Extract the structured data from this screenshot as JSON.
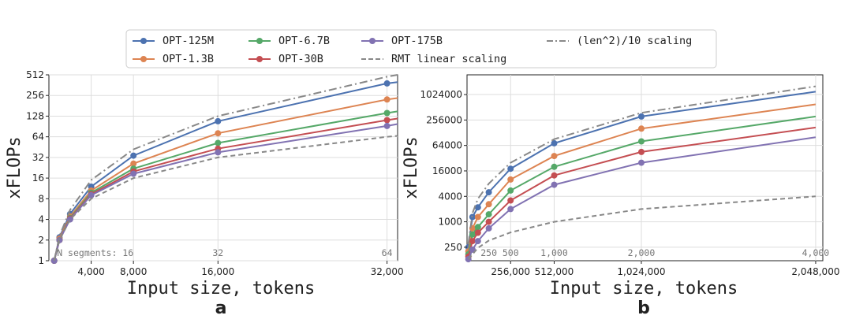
{
  "legend": {
    "entries": [
      {
        "label": "OPT-125M",
        "color": "#4c72b0",
        "style": "line-marker"
      },
      {
        "label": "OPT-6.7B",
        "color": "#55a868",
        "style": "line-marker"
      },
      {
        "label": "OPT-175B",
        "color": "#8172b2",
        "style": "line-marker"
      },
      {
        "label": "(len^2)/10 scaling",
        "color": "#888888",
        "style": "dashdot"
      },
      {
        "label": "OPT-1.3B",
        "color": "#dd8452",
        "style": "line-marker"
      },
      {
        "label": "OPT-30B",
        "color": "#c44e52",
        "style": "line-marker"
      },
      {
        "label": "RMT linear scaling",
        "color": "#888888",
        "style": "dashed"
      }
    ]
  },
  "chart_data": [
    {
      "panel": "a",
      "type": "line",
      "xlabel": "Input size, tokens",
      "ylabel": "xFLOPs",
      "yscale": "log2",
      "ylim": [
        1,
        512
      ],
      "xlim": [
        0,
        33000
      ],
      "y_ticks": [
        "1",
        "2",
        "4",
        "8",
        "16",
        "32",
        "64",
        "128",
        "256",
        "512"
      ],
      "x_ticks": [
        {
          "value": 4000,
          "label": "4,000"
        },
        {
          "value": 8000,
          "label": "8,000"
        },
        {
          "value": 16000,
          "label": "16,000"
        },
        {
          "value": 32000,
          "label": "32,000"
        }
      ],
      "segment_labels": [
        {
          "value": 8000,
          "label": "N segments: 16"
        },
        {
          "value": 16000,
          "label": "32"
        },
        {
          "value": 32000,
          "label": "64"
        }
      ],
      "grid": true,
      "series": [
        {
          "name": "OPT-125M",
          "color": "#4c72b0",
          "marker": true,
          "x": [
            500,
            1000,
            2000,
            4000,
            8000,
            16000,
            32000,
            33000
          ],
          "y": [
            1,
            2.2,
            4.8,
            12,
            34,
            108,
            384,
            400
          ]
        },
        {
          "name": "OPT-1.3B",
          "color": "#dd8452",
          "marker": true,
          "x": [
            500,
            1000,
            2000,
            4000,
            8000,
            16000,
            32000,
            33000
          ],
          "y": [
            1,
            2.1,
            4.4,
            10.5,
            26,
            72,
            224,
            235
          ]
        },
        {
          "name": "OPT-6.7B",
          "color": "#55a868",
          "marker": true,
          "x": [
            500,
            1000,
            2000,
            4000,
            8000,
            16000,
            32000,
            33000
          ],
          "y": [
            1,
            2.0,
            4.2,
            9.8,
            22,
            52,
            142,
            150
          ]
        },
        {
          "name": "OPT-30B",
          "color": "#c44e52",
          "marker": true,
          "x": [
            500,
            1000,
            2000,
            4000,
            8000,
            16000,
            32000,
            33000
          ],
          "y": [
            1,
            2.0,
            4.1,
            9.3,
            20,
            43,
            112,
            118
          ]
        },
        {
          "name": "OPT-175B",
          "color": "#8172b2",
          "marker": true,
          "x": [
            500,
            1000,
            2000,
            4000,
            8000,
            16000,
            32000,
            33000
          ],
          "y": [
            1,
            2.0,
            4.0,
            9.0,
            18.5,
            38,
            92,
            98
          ]
        },
        {
          "name": "(len^2)/10 scaling",
          "color": "#888888",
          "dash": "10,4,2,4",
          "marker": false,
          "x": [
            500,
            1000,
            2000,
            4000,
            8000,
            16000,
            32000,
            33000
          ],
          "y": [
            1,
            2.3,
            5.5,
            15,
            42,
            128,
            480,
            512
          ]
        },
        {
          "name": "RMT linear scaling",
          "color": "#888888",
          "dash": "6,4",
          "marker": false,
          "x": [
            500,
            1000,
            2000,
            4000,
            8000,
            16000,
            32000,
            33000
          ],
          "y": [
            1,
            2.0,
            4.0,
            8.0,
            16,
            32,
            64,
            66
          ]
        }
      ]
    },
    {
      "panel": "b",
      "type": "line",
      "xlabel": "Input size, tokens",
      "ylabel": "xFLOPs",
      "yscale": "log",
      "ylim": [
        120,
        3000000
      ],
      "xlim": [
        0,
        2090000
      ],
      "y_ticks": [
        {
          "value": 250,
          "label": "250"
        },
        {
          "value": 1000,
          "label": "1000"
        },
        {
          "value": 4000,
          "label": "4000"
        },
        {
          "value": 16000,
          "label": "16000"
        },
        {
          "value": 64000,
          "label": "64000"
        },
        {
          "value": 256000,
          "label": "256000"
        },
        {
          "value": 1024000,
          "label": "1024000"
        }
      ],
      "x_ticks": [
        {
          "value": 256000,
          "label": "256,000"
        },
        {
          "value": 512000,
          "label": "512,000"
        },
        {
          "value": 1024000,
          "label": "1,024,000"
        },
        {
          "value": 2048000,
          "label": "2,048,000"
        }
      ],
      "segment_labels": [
        {
          "value": 128000,
          "label": "250"
        },
        {
          "value": 256000,
          "label": "500"
        },
        {
          "value": 512000,
          "label": "1,000"
        },
        {
          "value": 1024000,
          "label": "2,000"
        },
        {
          "value": 2048000,
          "label": "4,000"
        }
      ],
      "grid": true,
      "series": [
        {
          "name": "OPT-125M",
          "color": "#4c72b0",
          "marker": true,
          "x": [
            8000,
            32000,
            64000,
            128000,
            256000,
            512000,
            1024000,
            2048000
          ],
          "y": [
            250,
            1300,
            2200,
            5000,
            18000,
            72000,
            310000,
            1200000
          ]
        },
        {
          "name": "OPT-1.3B",
          "color": "#dd8452",
          "marker": true,
          "x": [
            8000,
            32000,
            64000,
            128000,
            256000,
            512000,
            1024000,
            2048000
          ],
          "y": [
            200,
            700,
            1300,
            2600,
            10000,
            36000,
            160000,
            600000
          ]
        },
        {
          "name": "OPT-6.7B",
          "color": "#55a868",
          "marker": true,
          "x": [
            8000,
            32000,
            64000,
            128000,
            256000,
            512000,
            1024000,
            2048000
          ],
          "y": [
            170,
            500,
            750,
            1500,
            5500,
            20000,
            80000,
            310000
          ]
        },
        {
          "name": "OPT-30B",
          "color": "#c44e52",
          "marker": true,
          "x": [
            8000,
            32000,
            64000,
            128000,
            256000,
            512000,
            1024000,
            2048000
          ],
          "y": [
            150,
            350,
            550,
            1000,
            3200,
            12500,
            45000,
            170000
          ]
        },
        {
          "name": "OPT-175B",
          "color": "#8172b2",
          "marker": true,
          "x": [
            8000,
            32000,
            64000,
            128000,
            256000,
            512000,
            1024000,
            2048000
          ],
          "y": [
            130,
            220,
            350,
            700,
            2000,
            7500,
            25000,
            100000
          ]
        },
        {
          "name": "(len^2)/10 scaling",
          "color": "#888888",
          "dash": "10,4,2,4",
          "marker": false,
          "x": [
            8000,
            32000,
            64000,
            128000,
            256000,
            512000,
            1024000,
            2048000
          ],
          "y": [
            300,
            1600,
            3500,
            8000,
            25000,
            90000,
            380000,
            1600000
          ]
        },
        {
          "name": "RMT linear scaling",
          "color": "#888888",
          "dash": "6,4",
          "marker": false,
          "x": [
            8000,
            32000,
            64000,
            128000,
            256000,
            512000,
            1024000,
            2048000
          ],
          "y": [
            130,
            170,
            240,
            360,
            560,
            1000,
            2000,
            4000
          ]
        }
      ]
    }
  ],
  "panel_letters": [
    "a",
    "b"
  ]
}
